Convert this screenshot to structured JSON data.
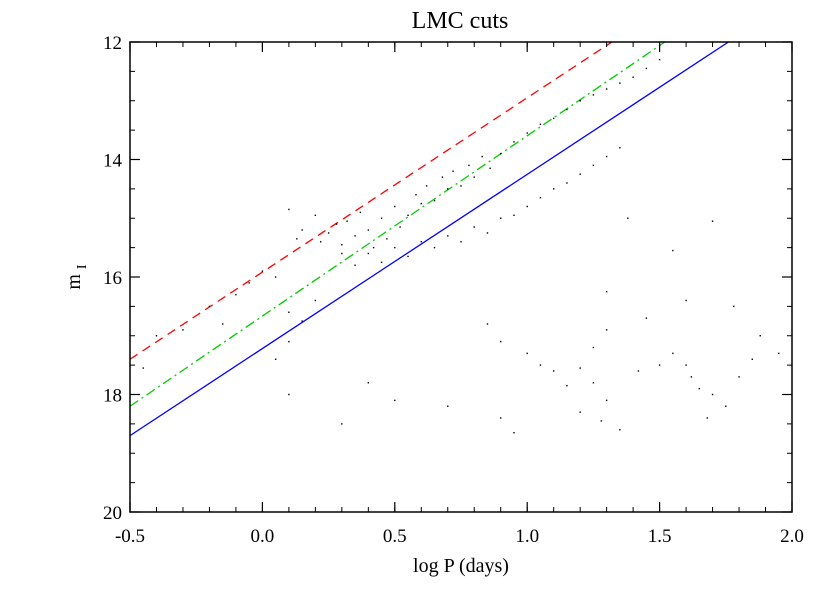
{
  "chart_data": {
    "type": "scatter",
    "title": "LMC cuts",
    "xlabel": "log P (days)",
    "ylabel": "m",
    "ylabel_subscript": "I",
    "xlim": [
      -0.5,
      2.0
    ],
    "ylim": [
      20,
      12
    ],
    "y_inverted": true,
    "grid": false,
    "xticks": [
      -0.5,
      0.0,
      0.5,
      1.0,
      1.5,
      2.0
    ],
    "xtick_labels": [
      "-0.5",
      "0.0",
      "0.5",
      "1.0",
      "1.5",
      "2.0"
    ],
    "yticks": [
      12,
      14,
      16,
      18,
      20
    ],
    "ytick_labels": [
      "12",
      "14",
      "16",
      "18",
      "20"
    ],
    "lines": [
      {
        "style": "dashed",
        "color": "#ff0000",
        "x": [
          -0.5,
          1.32
        ],
        "y": [
          17.4,
          12.0
        ]
      },
      {
        "style": "dash-dot",
        "color": "#00cc00",
        "x": [
          -0.5,
          1.52
        ],
        "y": [
          18.2,
          12.0
        ]
      },
      {
        "style": "solid",
        "color": "#0000ff",
        "x": [
          -0.5,
          1.76
        ],
        "y": [
          18.7,
          12.0
        ]
      }
    ],
    "series": [
      {
        "marker": "dot",
        "color": "#000000",
        "points": [
          [
            0.1,
            14.85
          ],
          [
            0.13,
            15.35
          ],
          [
            0.15,
            15.2
          ],
          [
            0.2,
            14.95
          ],
          [
            0.22,
            15.4
          ],
          [
            0.25,
            15.25
          ],
          [
            0.28,
            15.1
          ],
          [
            0.3,
            15.45
          ],
          [
            0.32,
            15.05
          ],
          [
            0.35,
            15.3
          ],
          [
            0.37,
            14.9
          ],
          [
            0.4,
            15.2
          ],
          [
            0.42,
            15.5
          ],
          [
            0.45,
            15.0
          ],
          [
            0.47,
            15.35
          ],
          [
            0.5,
            14.8
          ],
          [
            0.52,
            15.15
          ],
          [
            0.55,
            14.95
          ],
          [
            0.58,
            14.6
          ],
          [
            0.6,
            14.75
          ],
          [
            0.62,
            14.45
          ],
          [
            0.65,
            14.7
          ],
          [
            0.68,
            14.3
          ],
          [
            0.7,
            14.5
          ],
          [
            0.72,
            14.2
          ],
          [
            0.75,
            14.45
          ],
          [
            0.78,
            14.1
          ],
          [
            0.8,
            14.3
          ],
          [
            0.83,
            13.95
          ],
          [
            0.86,
            14.15
          ],
          [
            0.9,
            13.9
          ],
          [
            0.95,
            13.7
          ],
          [
            1.0,
            13.55
          ],
          [
            1.05,
            13.4
          ],
          [
            1.1,
            13.3
          ],
          [
            1.15,
            13.15
          ],
          [
            1.2,
            13.0
          ],
          [
            1.25,
            12.9
          ],
          [
            1.3,
            12.8
          ],
          [
            1.35,
            12.7
          ],
          [
            1.4,
            12.6
          ],
          [
            1.45,
            12.45
          ],
          [
            1.5,
            12.3
          ],
          [
            0.3,
            15.6
          ],
          [
            0.35,
            15.8
          ],
          [
            0.4,
            15.6
          ],
          [
            0.45,
            15.75
          ],
          [
            0.5,
            15.5
          ],
          [
            0.55,
            15.65
          ],
          [
            0.6,
            15.4
          ],
          [
            0.65,
            15.5
          ],
          [
            0.7,
            15.3
          ],
          [
            0.75,
            15.4
          ],
          [
            0.8,
            15.15
          ],
          [
            0.85,
            15.25
          ],
          [
            0.9,
            15.0
          ],
          [
            0.95,
            14.95
          ],
          [
            1.0,
            14.8
          ],
          [
            1.05,
            14.65
          ],
          [
            1.1,
            14.5
          ],
          [
            1.15,
            14.4
          ],
          [
            1.2,
            14.25
          ],
          [
            1.25,
            14.1
          ],
          [
            1.3,
            13.95
          ],
          [
            1.35,
            13.8
          ],
          [
            -0.05,
            16.1
          ],
          [
            0.0,
            15.9
          ],
          [
            0.05,
            16.0
          ],
          [
            -0.1,
            16.3
          ],
          [
            -0.2,
            16.5
          ],
          [
            -0.15,
            16.8
          ],
          [
            -0.3,
            16.9
          ],
          [
            -0.4,
            17.0
          ],
          [
            -0.45,
            17.55
          ],
          [
            0.1,
            16.6
          ],
          [
            0.1,
            17.1
          ],
          [
            0.15,
            16.75
          ],
          [
            0.2,
            16.4
          ],
          [
            0.05,
            17.4
          ],
          [
            1.0,
            17.3
          ],
          [
            1.05,
            17.5
          ],
          [
            1.1,
            17.6
          ],
          [
            1.15,
            17.85
          ],
          [
            1.2,
            17.55
          ],
          [
            1.25,
            17.2
          ],
          [
            1.3,
            16.9
          ],
          [
            1.25,
            17.8
          ],
          [
            1.3,
            18.1
          ],
          [
            1.2,
            18.3
          ],
          [
            1.28,
            18.45
          ],
          [
            1.35,
            18.6
          ],
          [
            1.5,
            17.5
          ],
          [
            1.55,
            17.3
          ],
          [
            1.6,
            17.5
          ],
          [
            1.62,
            17.7
          ],
          [
            1.65,
            17.9
          ],
          [
            1.7,
            18.0
          ],
          [
            1.75,
            18.2
          ],
          [
            1.68,
            18.4
          ],
          [
            1.8,
            17.7
          ],
          [
            1.85,
            17.4
          ],
          [
            1.88,
            17.0
          ],
          [
            1.95,
            17.3
          ],
          [
            1.42,
            17.6
          ],
          [
            1.45,
            16.7
          ],
          [
            1.6,
            16.4
          ],
          [
            1.78,
            16.5
          ],
          [
            0.7,
            18.2
          ],
          [
            0.9,
            18.4
          ],
          [
            0.95,
            18.65
          ],
          [
            0.5,
            18.1
          ],
          [
            0.4,
            17.8
          ],
          [
            0.3,
            18.5
          ],
          [
            0.85,
            16.8
          ],
          [
            0.9,
            17.1
          ],
          [
            0.1,
            18.0
          ],
          [
            1.38,
            15.0
          ],
          [
            1.7,
            15.05
          ],
          [
            1.55,
            15.55
          ],
          [
            1.3,
            16.25
          ]
        ]
      }
    ]
  }
}
